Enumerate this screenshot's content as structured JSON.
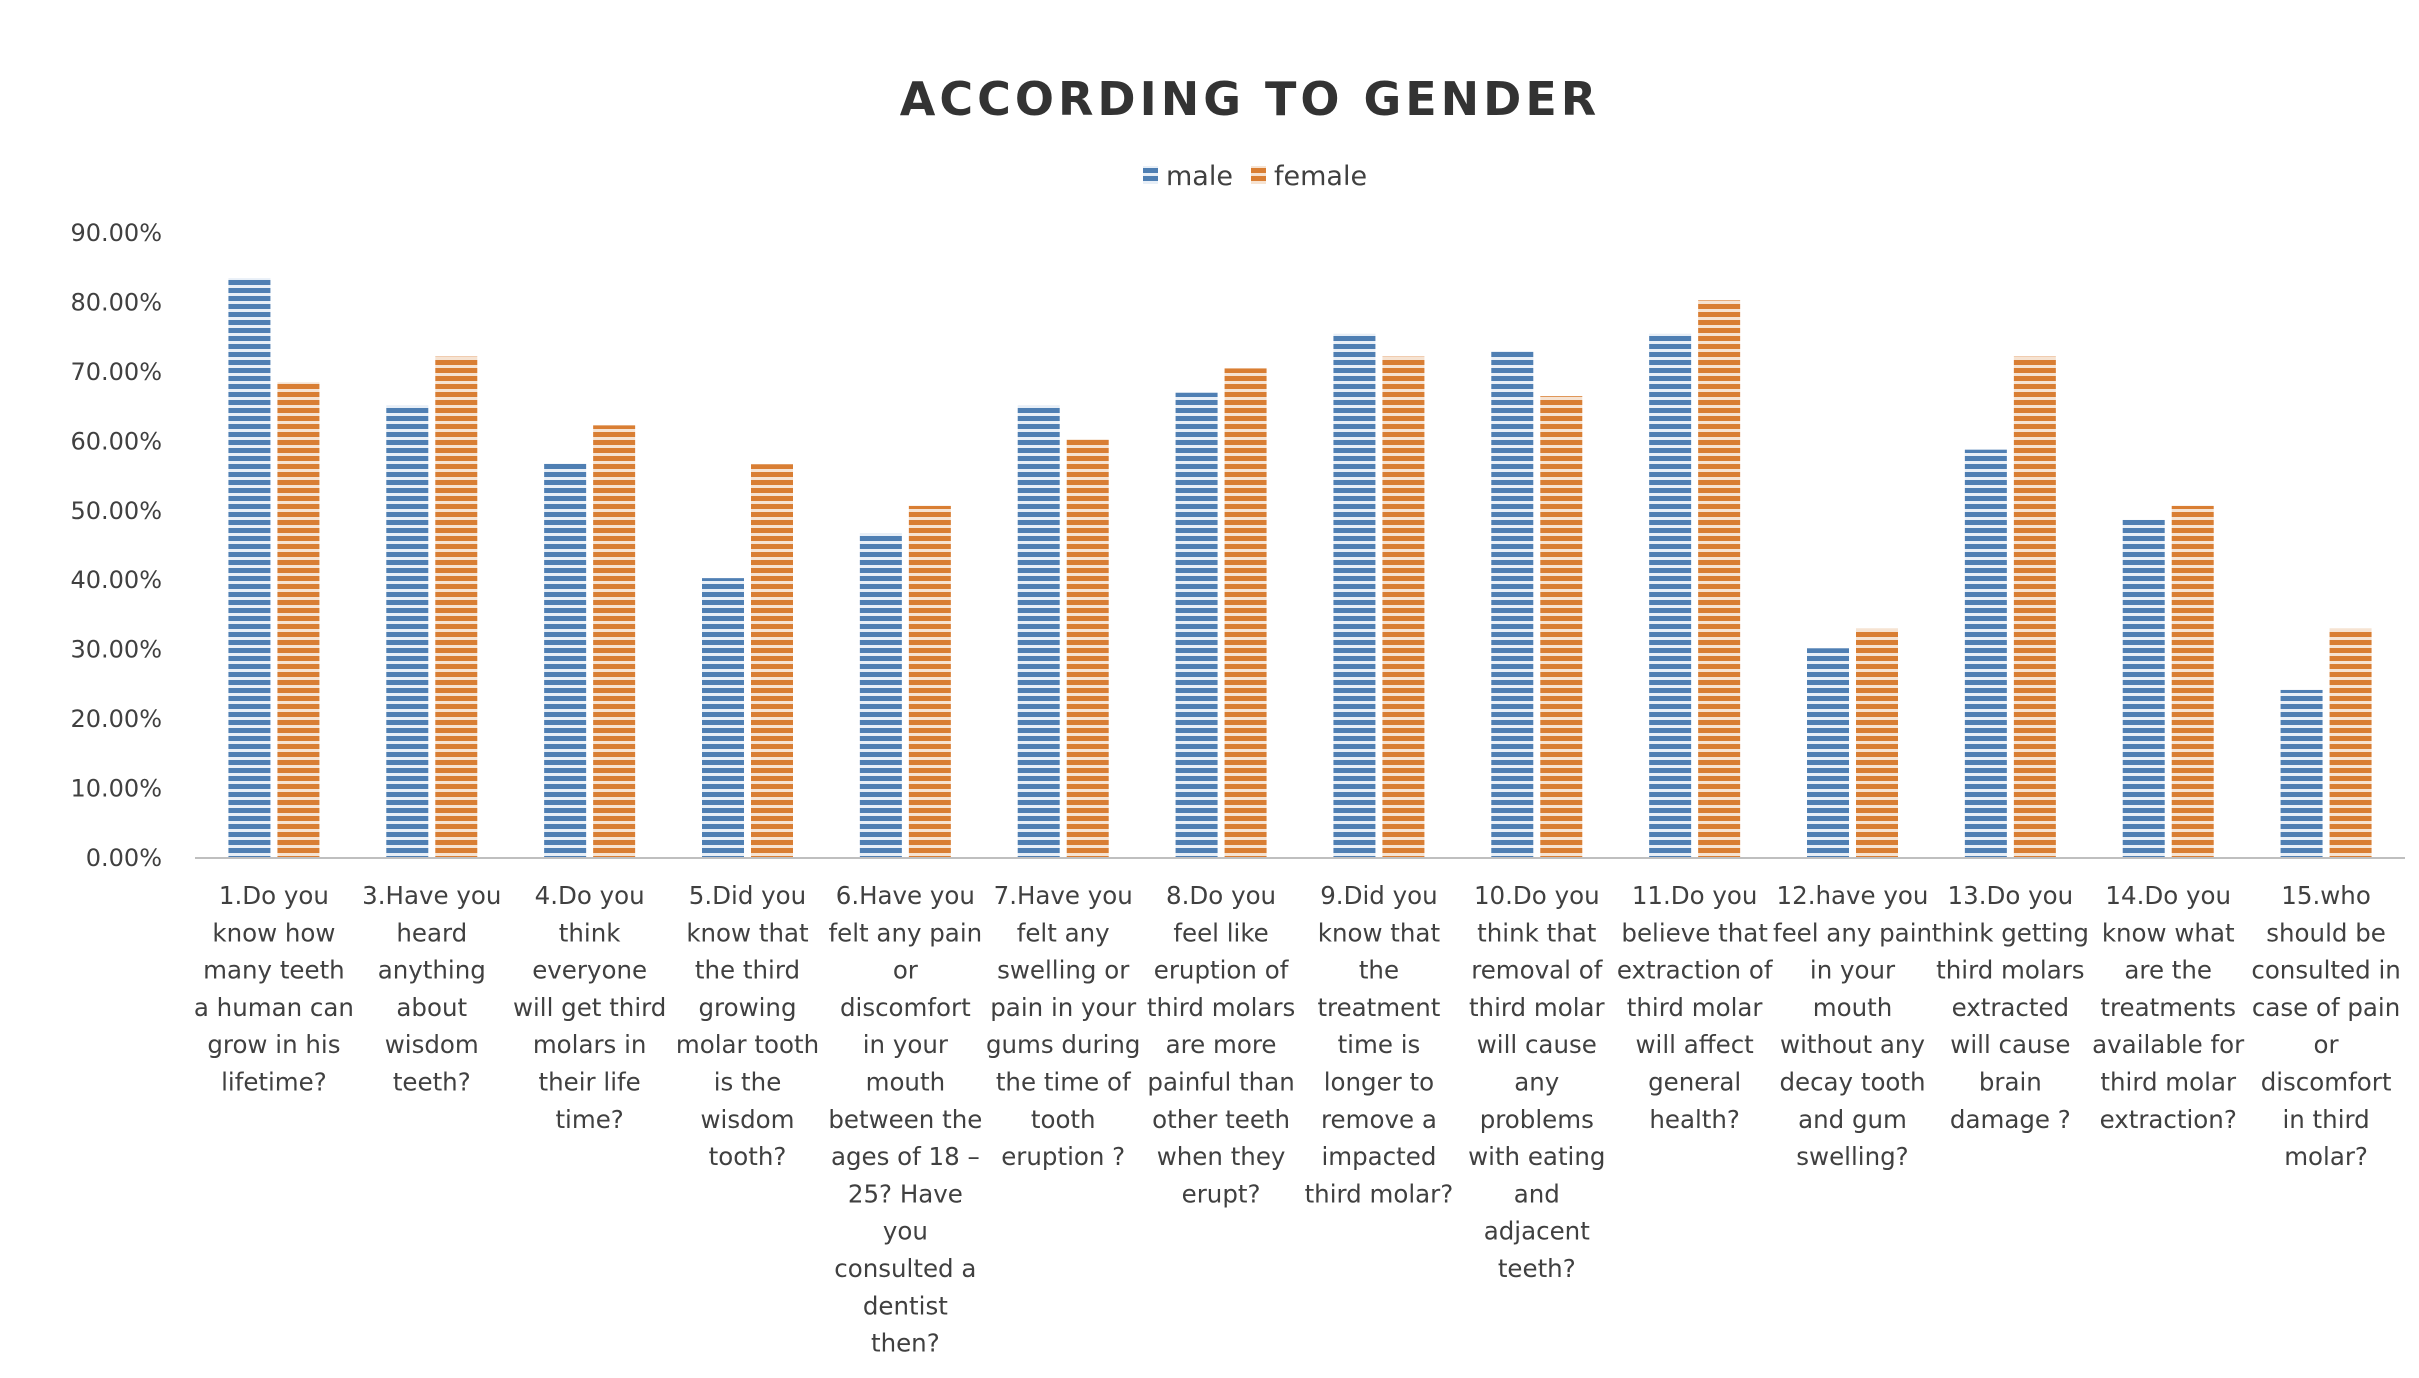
{
  "chart_data": {
    "type": "bar",
    "title": "ACCORDING TO GENDER",
    "xlabel": "",
    "ylabel": "",
    "ylim": [
      0,
      0.9
    ],
    "y_ticks": [
      "0.00%",
      "10.00%",
      "20.00%",
      "30.00%",
      "40.00%",
      "50.00%",
      "60.00%",
      "70.00%",
      "80.00%",
      "90.00%"
    ],
    "grid": false,
    "legend": "top-center",
    "categories": [
      "1.Do you know how many teeth a human can grow in his lifetime?",
      "3.Have you heard anything about wisdom teeth?",
      "4.Do you think everyone will get third molars in their life time?",
      "5.Did you know that the third growing molar tooth is the wisdom tooth?",
      "6.Have you felt any pain or discomfort in your mouth between the ages of 18 – 25? Have you consulted a dentist then?",
      "7.Have you felt any swelling or pain in your gums during the time of tooth eruption ?",
      "8.Do you feel like eruption of third molars are more painful than other teeth when they erupt?",
      "9.Did you know that the treatment time is longer to remove a impacted third molar?",
      "10.Do you think that removal of third molar will cause any problems with eating and adjacent teeth?",
      "11.Do you believe that extraction of third molar will affect general health?",
      "12.have you feel any pain in your mouth without any decay tooth and gum swelling?",
      "13.Do you think getting third molars extracted will cause brain damage ?",
      "14.Do you know what are the treatments available for third molar extraction?",
      "15.who should be consulted in case of pain or discomfort in third molar?"
    ],
    "category_lines": [
      [
        "1.Do you",
        "know how",
        "many teeth",
        "a human can",
        "grow in his",
        "lifetime?"
      ],
      [
        "3.Have you",
        "heard",
        "anything",
        "about",
        "wisdom",
        "teeth?"
      ],
      [
        "4.Do you",
        "think",
        "everyone",
        "will get third",
        "molars in",
        "their life",
        "time?"
      ],
      [
        "5.Did you",
        "know that",
        "the third",
        "growing",
        "molar tooth",
        "is the",
        "wisdom",
        "tooth?"
      ],
      [
        "6.Have you",
        "felt any pain",
        "or",
        "discomfort",
        "in your",
        "mouth",
        "between the",
        "ages of 18 –",
        "25? Have",
        "you",
        "consulted a",
        "dentist",
        "then?"
      ],
      [
        "7.Have you",
        "felt any",
        "swelling or",
        "pain in your",
        "gums during",
        "the time of",
        "tooth",
        "eruption ?"
      ],
      [
        "8.Do you",
        "feel like",
        "eruption of",
        "third molars",
        "are more",
        "painful than",
        "other teeth",
        "when they",
        "erupt?"
      ],
      [
        "9.Did you",
        "know that",
        "the",
        "treatment",
        "time is",
        "longer to",
        "remove a",
        "impacted",
        "third molar?"
      ],
      [
        "10.Do you",
        "think that",
        "removal of",
        "third molar",
        "will cause",
        "any",
        "problems",
        "with eating",
        "and",
        "adjacent",
        "teeth?"
      ],
      [
        "11.Do you",
        "believe that",
        "extraction of",
        "third molar",
        "will affect",
        "general",
        "health?"
      ],
      [
        "12.have you",
        "feel any pain",
        "in your",
        "mouth",
        "without any",
        "decay tooth",
        "and gum",
        "swelling?"
      ],
      [
        "13.Do you",
        "think getting",
        "third molars",
        "extracted",
        "will cause",
        "brain",
        "damage ?"
      ],
      [
        "14.Do you",
        "know what",
        "are the",
        "treatments",
        "available for",
        "third molar",
        "extraction?"
      ],
      [
        "15.who",
        "should be",
        "consulted in",
        "case of pain",
        "or",
        "discomfort",
        "in third",
        "molar?"
      ]
    ],
    "series": [
      {
        "name": "male",
        "color": "#5b84b1",
        "values": [
          0.835,
          0.652,
          0.568,
          0.403,
          0.468,
          0.652,
          0.67,
          0.755,
          0.73,
          0.755,
          0.302,
          0.588,
          0.487,
          0.242
        ]
      },
      {
        "name": "female",
        "color": "#d9823b",
        "values": [
          0.685,
          0.722,
          0.623,
          0.567,
          0.507,
          0.603,
          0.705,
          0.722,
          0.665,
          0.803,
          0.33,
          0.722,
          0.507,
          0.33
        ]
      }
    ]
  }
}
